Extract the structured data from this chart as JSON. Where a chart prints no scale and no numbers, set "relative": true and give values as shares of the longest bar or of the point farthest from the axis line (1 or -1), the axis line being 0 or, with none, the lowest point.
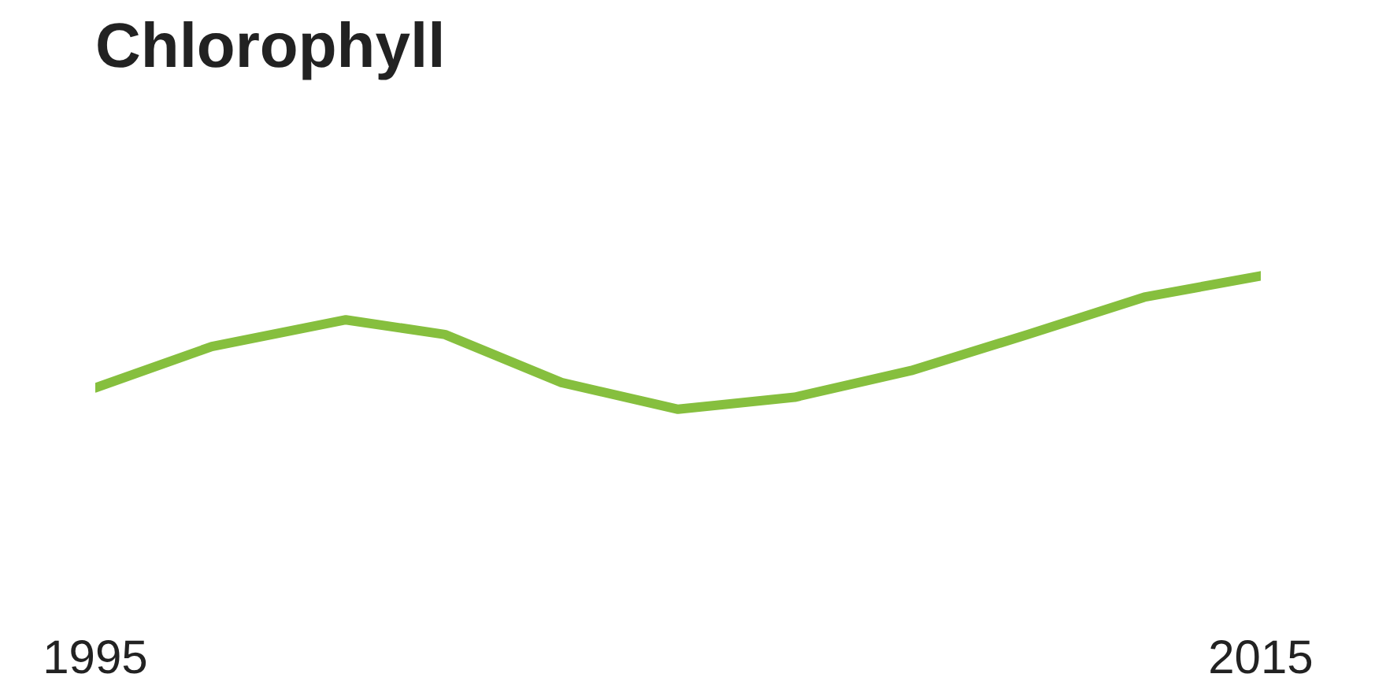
{
  "chart_data": {
    "type": "line",
    "title": "Chlorophyll",
    "relative": true,
    "x": [
      1995,
      1997,
      1999.3,
      2001,
      2003,
      2005,
      2007,
      2009,
      2011,
      2013,
      2015
    ],
    "values": [
      0.16,
      0.47,
      0.67,
      0.56,
      0.2,
      0,
      0.09,
      0.29,
      0.56,
      0.84,
      1.0
    ],
    "color": "#86bf3e",
    "xlim": [
      1995,
      2015
    ],
    "xticks": [
      1995,
      2015
    ],
    "grid": false,
    "marker": "none",
    "line_style": "solid"
  }
}
